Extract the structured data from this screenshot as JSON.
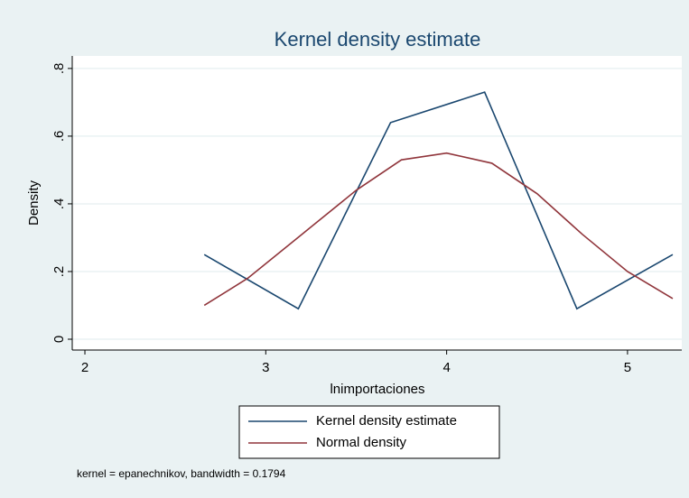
{
  "chart_data": {
    "type": "line",
    "title": "Kernel density estimate",
    "x_label": "lnimportaciones",
    "y_label": "Density",
    "note": "kernel = epanechnikov, bandwidth = 0.1794",
    "series": [
      {
        "name": "Kernel density estimate",
        "color": "#1a476f",
        "x": [
          2.66,
          3.18,
          3.69,
          4.21,
          4.72,
          5.25
        ],
        "values": [
          0.25,
          0.09,
          0.64,
          0.73,
          0.09,
          0.25
        ]
      },
      {
        "name": "Normal density",
        "color": "#90353b",
        "x": [
          2.66,
          2.9,
          3.2,
          3.5,
          3.75,
          4.0,
          4.25,
          4.5,
          4.75,
          5.0,
          5.25
        ],
        "values": [
          0.1,
          0.18,
          0.31,
          0.44,
          0.53,
          0.55,
          0.52,
          0.43,
          0.31,
          0.2,
          0.12
        ]
      }
    ],
    "xlim": [
      1.93,
      5.3
    ],
    "xticks": [
      2,
      3,
      4,
      5
    ],
    "ylim": [
      -0.032,
      0.837
    ],
    "yticks": [
      0,
      {
        "value": 0.2,
        "label": ".2"
      },
      {
        "value": 0.4,
        "label": ".4"
      },
      {
        "value": 0.6,
        "label": ".6"
      },
      {
        "value": 0.8,
        "label": ".8"
      }
    ],
    "grid": true
  }
}
